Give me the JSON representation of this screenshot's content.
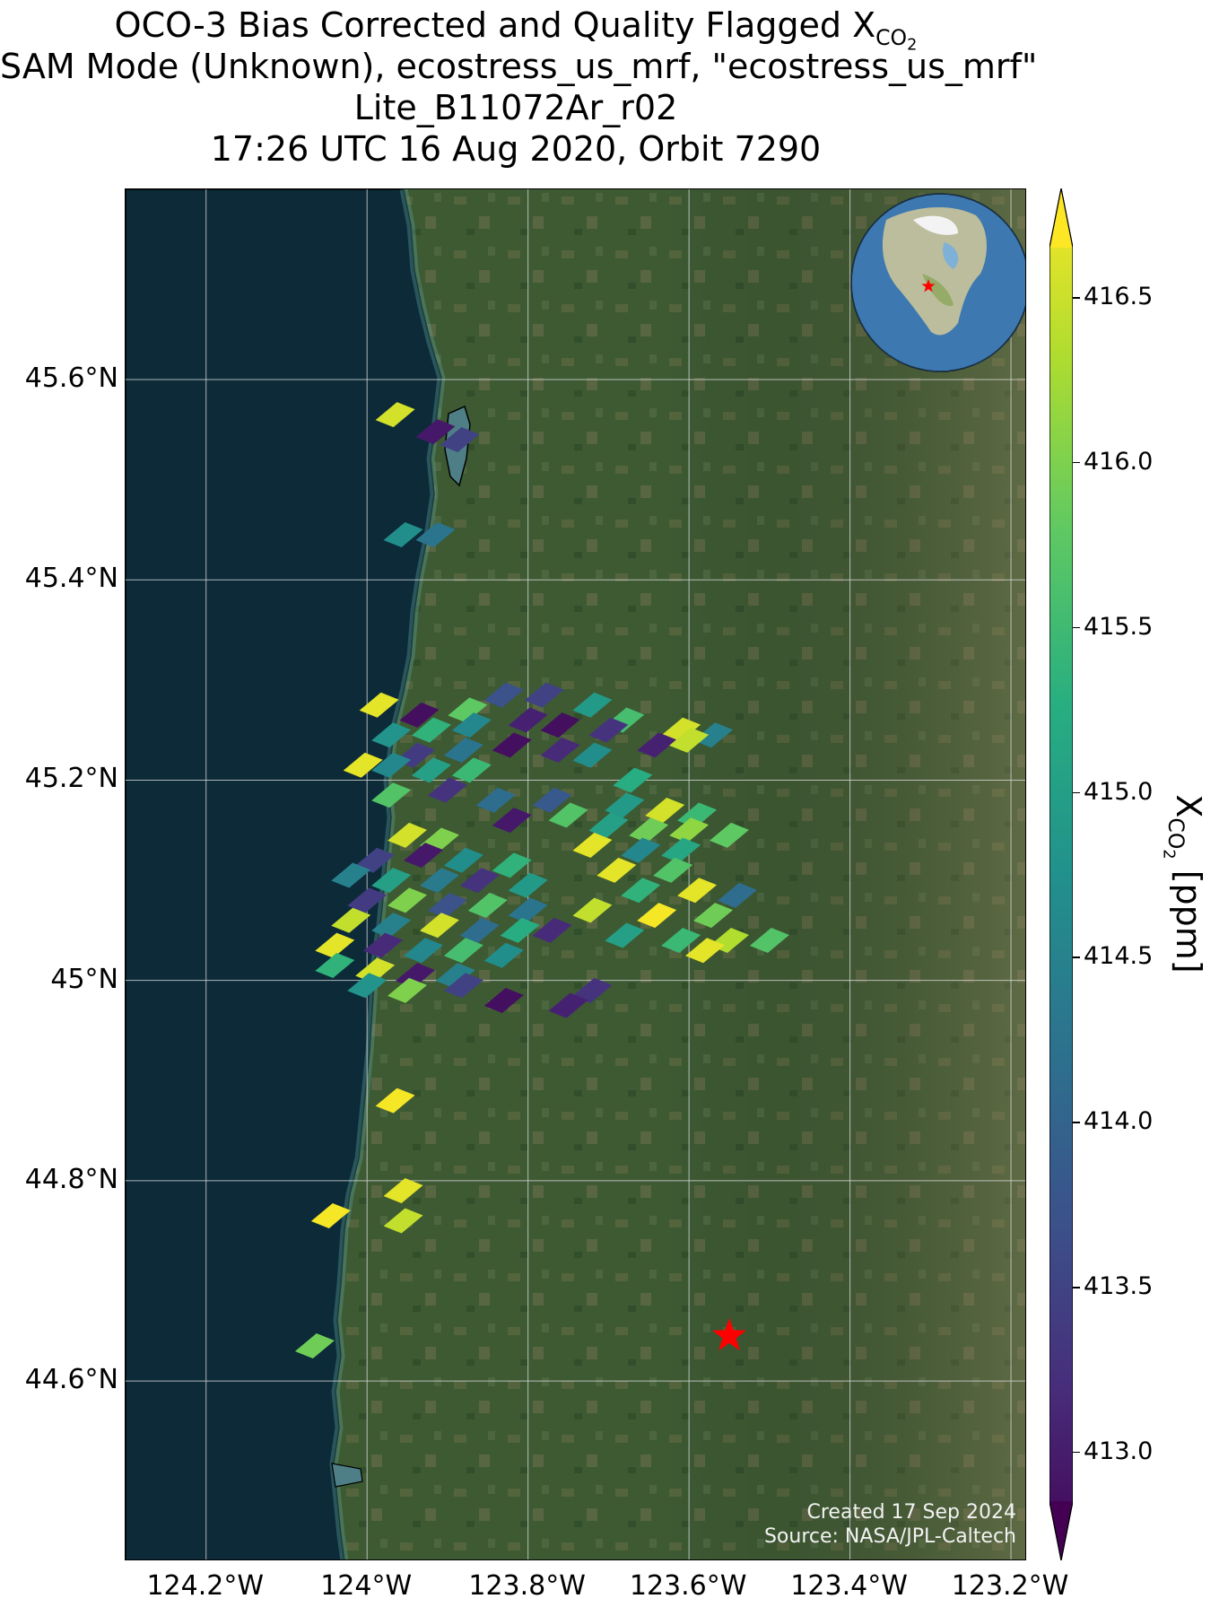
{
  "title": {
    "line1_prefix": "OCO-3 Bias Corrected and Quality Flagged X",
    "line1_sub": "CO",
    "line1_subsub": "2",
    "line2": "SAM Mode (Unknown), ecostress_us_mrf, \"ecostress_us_mrf\"",
    "line3": "Lite_B11072Ar_r02",
    "line4": "17:26 UTC 16 Aug 2020, Orbit 7290"
  },
  "map": {
    "lat_range": [
      44.42,
      45.79
    ],
    "lon_range": [
      -124.3,
      -123.18
    ],
    "lat_ticks": [
      "45.6°N",
      "45.4°N",
      "45.2°N",
      "45°N",
      "44.8°N",
      "44.6°N"
    ],
    "lat_tick_values": [
      45.6,
      45.4,
      45.2,
      45.0,
      44.8,
      44.6
    ],
    "lon_ticks": [
      "124.2°W",
      "124°W",
      "123.8°W",
      "123.6°W",
      "123.4°W",
      "123.2°W"
    ],
    "lon_tick_values": [
      -124.2,
      -124.0,
      -123.8,
      -123.6,
      -123.4,
      -123.2
    ],
    "target_marker": {
      "lat": 44.645,
      "lon": -123.55,
      "color": "#ff0000",
      "icon": "star-icon"
    },
    "basemap": "satellite imagery",
    "gridlines": true,
    "inset_globe": {
      "position": "top-right",
      "icon": "globe-icon",
      "marker_color": "#ff0000"
    },
    "ocean_color": "#0c2a38",
    "land_color": "#3c5a32"
  },
  "credit": {
    "line1": "Created 17 Sep 2024",
    "line2": "Source: NASA/JPL-Caltech"
  },
  "colorbar": {
    "label_prefix": "X",
    "label_sub": "CO",
    "label_subsub": "2",
    "label_suffix": " [ppm]",
    "min": 412.85,
    "max": 416.65,
    "tick_labels": [
      "416.5",
      "416.0",
      "415.5",
      "415.0",
      "414.5",
      "414.0",
      "413.5",
      "413.0"
    ],
    "tick_values": [
      416.5,
      416.0,
      415.5,
      415.0,
      414.5,
      414.0,
      413.5,
      413.0
    ],
    "colormap": "viridis",
    "extend": "both"
  },
  "chart_data": {
    "type": "heatmap",
    "value_unit": "ppm",
    "points": [
      {
        "lat": 45.565,
        "lon": -123.965,
        "v": 416.4
      },
      {
        "lat": 45.548,
        "lon": -123.915,
        "v": 413.1
      },
      {
        "lat": 45.54,
        "lon": -123.885,
        "v": 413.6
      },
      {
        "lat": 45.445,
        "lon": -123.955,
        "v": 414.7
      },
      {
        "lat": 45.445,
        "lon": -123.915,
        "v": 414.3
      },
      {
        "lat": 45.275,
        "lon": -123.985,
        "v": 416.5
      },
      {
        "lat": 45.265,
        "lon": -123.935,
        "v": 413.0
      },
      {
        "lat": 45.27,
        "lon": -123.875,
        "v": 415.7
      },
      {
        "lat": 45.285,
        "lon": -123.83,
        "v": 413.8
      },
      {
        "lat": 45.285,
        "lon": -123.78,
        "v": 413.6
      },
      {
        "lat": 45.275,
        "lon": -123.72,
        "v": 414.9
      },
      {
        "lat": 45.26,
        "lon": -123.68,
        "v": 415.5
      },
      {
        "lat": 45.25,
        "lon": -123.61,
        "v": 416.4
      },
      {
        "lat": 45.245,
        "lon": -123.57,
        "v": 414.5
      },
      {
        "lat": 45.245,
        "lon": -123.97,
        "v": 414.8
      },
      {
        "lat": 45.25,
        "lon": -123.92,
        "v": 415.3
      },
      {
        "lat": 45.255,
        "lon": -123.87,
        "v": 414.6
      },
      {
        "lat": 45.26,
        "lon": -123.8,
        "v": 413.2
      },
      {
        "lat": 45.255,
        "lon": -123.76,
        "v": 413.0
      },
      {
        "lat": 45.25,
        "lon": -123.7,
        "v": 413.4
      },
      {
        "lat": 45.235,
        "lon": -123.64,
        "v": 413.2
      },
      {
        "lat": 45.24,
        "lon": -123.6,
        "v": 416.3
      },
      {
        "lat": 45.225,
        "lon": -123.94,
        "v": 413.5
      },
      {
        "lat": 45.23,
        "lon": -123.88,
        "v": 414.3
      },
      {
        "lat": 45.235,
        "lon": -123.82,
        "v": 413.0
      },
      {
        "lat": 45.23,
        "lon": -123.76,
        "v": 413.3
      },
      {
        "lat": 45.225,
        "lon": -123.72,
        "v": 414.7
      },
      {
        "lat": 45.215,
        "lon": -124.005,
        "v": 416.5
      },
      {
        "lat": 45.215,
        "lon": -123.97,
        "v": 414.6
      },
      {
        "lat": 45.21,
        "lon": -123.92,
        "v": 415.0
      },
      {
        "lat": 45.21,
        "lon": -123.87,
        "v": 415.4
      },
      {
        "lat": 45.2,
        "lon": -123.67,
        "v": 415.2
      },
      {
        "lat": 45.185,
        "lon": -123.97,
        "v": 415.6
      },
      {
        "lat": 45.19,
        "lon": -123.9,
        "v": 413.4
      },
      {
        "lat": 45.18,
        "lon": -123.84,
        "v": 414.2
      },
      {
        "lat": 45.18,
        "lon": -123.77,
        "v": 413.9
      },
      {
        "lat": 45.175,
        "lon": -123.68,
        "v": 414.9
      },
      {
        "lat": 45.17,
        "lon": -123.63,
        "v": 416.4
      },
      {
        "lat": 45.165,
        "lon": -123.59,
        "v": 415.4
      },
      {
        "lat": 45.16,
        "lon": -123.82,
        "v": 413.1
      },
      {
        "lat": 45.165,
        "lon": -123.75,
        "v": 415.6
      },
      {
        "lat": 45.155,
        "lon": -123.7,
        "v": 415.0
      },
      {
        "lat": 45.15,
        "lon": -123.65,
        "v": 415.8
      },
      {
        "lat": 45.15,
        "lon": -123.6,
        "v": 416.0
      },
      {
        "lat": 45.145,
        "lon": -123.55,
        "v": 415.7
      },
      {
        "lat": 45.145,
        "lon": -123.95,
        "v": 416.4
      },
      {
        "lat": 45.14,
        "lon": -123.91,
        "v": 415.9
      },
      {
        "lat": 45.135,
        "lon": -123.72,
        "v": 416.5
      },
      {
        "lat": 45.13,
        "lon": -123.66,
        "v": 414.6
      },
      {
        "lat": 45.13,
        "lon": -123.61,
        "v": 415.1
      },
      {
        "lat": 45.12,
        "lon": -123.99,
        "v": 413.6
      },
      {
        "lat": 45.125,
        "lon": -123.93,
        "v": 413.1
      },
      {
        "lat": 45.12,
        "lon": -123.88,
        "v": 414.7
      },
      {
        "lat": 45.115,
        "lon": -123.82,
        "v": 415.3
      },
      {
        "lat": 45.11,
        "lon": -123.69,
        "v": 416.5
      },
      {
        "lat": 45.11,
        "lon": -123.62,
        "v": 415.6
      },
      {
        "lat": 45.105,
        "lon": -124.02,
        "v": 414.5
      },
      {
        "lat": 45.1,
        "lon": -123.97,
        "v": 415.0
      },
      {
        "lat": 45.1,
        "lon": -123.91,
        "v": 414.4
      },
      {
        "lat": 45.1,
        "lon": -123.86,
        "v": 413.4
      },
      {
        "lat": 45.095,
        "lon": -123.8,
        "v": 414.9
      },
      {
        "lat": 45.09,
        "lon": -123.66,
        "v": 415.3
      },
      {
        "lat": 45.09,
        "lon": -123.59,
        "v": 416.5
      },
      {
        "lat": 45.085,
        "lon": -123.54,
        "v": 414.2
      },
      {
        "lat": 45.08,
        "lon": -124.0,
        "v": 413.5
      },
      {
        "lat": 45.08,
        "lon": -123.95,
        "v": 415.9
      },
      {
        "lat": 45.075,
        "lon": -123.9,
        "v": 413.8
      },
      {
        "lat": 45.075,
        "lon": -123.85,
        "v": 415.6
      },
      {
        "lat": 45.07,
        "lon": -123.8,
        "v": 414.3
      },
      {
        "lat": 45.07,
        "lon": -123.72,
        "v": 416.3
      },
      {
        "lat": 45.065,
        "lon": -123.64,
        "v": 416.6
      },
      {
        "lat": 45.065,
        "lon": -123.57,
        "v": 415.8
      },
      {
        "lat": 45.06,
        "lon": -124.02,
        "v": 416.3
      },
      {
        "lat": 45.055,
        "lon": -123.97,
        "v": 414.5
      },
      {
        "lat": 45.055,
        "lon": -123.91,
        "v": 416.4
      },
      {
        "lat": 45.05,
        "lon": -123.86,
        "v": 414.2
      },
      {
        "lat": 45.05,
        "lon": -123.81,
        "v": 415.2
      },
      {
        "lat": 45.05,
        "lon": -123.77,
        "v": 413.3
      },
      {
        "lat": 45.045,
        "lon": -123.68,
        "v": 415.0
      },
      {
        "lat": 45.04,
        "lon": -123.61,
        "v": 415.4
      },
      {
        "lat": 45.04,
        "lon": -123.55,
        "v": 416.2
      },
      {
        "lat": 45.04,
        "lon": -123.5,
        "v": 415.6
      },
      {
        "lat": 45.035,
        "lon": -124.04,
        "v": 416.5
      },
      {
        "lat": 45.035,
        "lon": -123.98,
        "v": 413.3
      },
      {
        "lat": 45.03,
        "lon": -123.93,
        "v": 414.6
      },
      {
        "lat": 45.03,
        "lon": -123.88,
        "v": 415.5
      },
      {
        "lat": 45.025,
        "lon": -123.83,
        "v": 414.7
      },
      {
        "lat": 45.03,
        "lon": -123.58,
        "v": 416.5
      },
      {
        "lat": 45.015,
        "lon": -124.04,
        "v": 415.3
      },
      {
        "lat": 45.01,
        "lon": -123.99,
        "v": 416.4
      },
      {
        "lat": 45.005,
        "lon": -123.94,
        "v": 413.1
      },
      {
        "lat": 45.005,
        "lon": -123.89,
        "v": 414.5
      },
      {
        "lat": 44.995,
        "lon": -124.0,
        "v": 414.8
      },
      {
        "lat": 44.99,
        "lon": -123.95,
        "v": 415.9
      },
      {
        "lat": 44.995,
        "lon": -123.88,
        "v": 413.6
      },
      {
        "lat": 44.98,
        "lon": -123.83,
        "v": 413.0
      },
      {
        "lat": 44.99,
        "lon": -123.72,
        "v": 413.4
      },
      {
        "lat": 44.975,
        "lon": -123.75,
        "v": 413.2
      },
      {
        "lat": 44.88,
        "lon": -123.965,
        "v": 416.6
      },
      {
        "lat": 44.79,
        "lon": -123.955,
        "v": 416.5
      },
      {
        "lat": 44.765,
        "lon": -124.045,
        "v": 416.6
      },
      {
        "lat": 44.76,
        "lon": -123.955,
        "v": 416.3
      },
      {
        "lat": 44.635,
        "lon": -124.065,
        "v": 415.8
      }
    ]
  }
}
